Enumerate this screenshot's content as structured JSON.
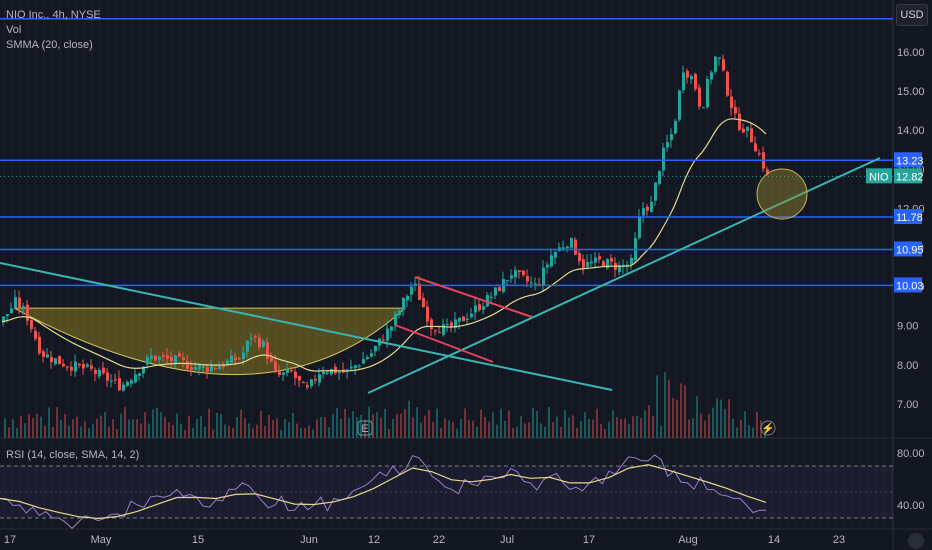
{
  "legend": {
    "symbol_line": "NIO Inc., 4h, NYSE",
    "vol_label": "Vol",
    "smma_label": "SMMA (20, close)"
  },
  "rsi_legend": "RSI (14, close, SMA, 14, 2)",
  "currency": "USD",
  "colors": {
    "background": "#131722",
    "up": "#26a69a",
    "down": "#ef5350",
    "smma": "#e5d98a",
    "hline": "#2962ff",
    "trendline": "#37b5b0",
    "channel": "#e0455a",
    "cup_fill": "#8a7a20",
    "rsi": "#9c7cc9",
    "rsi_ma": "#e5d98a"
  },
  "chart_data": [
    {
      "type": "candlestick",
      "title": "NIO Inc., 4h, NYSE",
      "y_axis_ticks": [
        "16.00",
        "15.00",
        "14.00",
        "13.00",
        "12.00",
        "11.00",
        "10.00",
        "9.00",
        "8.00",
        "7.00"
      ],
      "ylim": [
        6.2,
        16.9
      ],
      "x_axis_ticks": [
        "17",
        "May",
        "15",
        "Jun",
        "12",
        "22",
        "Jul",
        "17",
        "Aug",
        "14",
        "23"
      ],
      "price_levels": [
        {
          "label": "13.23",
          "value": 13.23
        },
        {
          "label": "11.78",
          "value": 11.78
        },
        {
          "label": "10.95",
          "value": 10.95
        },
        {
          "label": "10.03",
          "value": 10.03
        }
      ],
      "top_line_value": 16.85,
      "last_price": {
        "symbol": "NIO",
        "value": "12.82"
      },
      "indicators": [
        "Vol",
        "SMMA (20, close)"
      ],
      "close_path": [
        [
          0,
          9.1
        ],
        [
          14,
          9.6
        ],
        [
          24,
          9.35
        ],
        [
          40,
          8.3
        ],
        [
          60,
          8.05
        ],
        [
          90,
          7.85
        ],
        [
          120,
          7.45
        ],
        [
          150,
          8.2
        ],
        [
          175,
          8.1
        ],
        [
          200,
          7.9
        ],
        [
          220,
          8.0
        ],
        [
          240,
          8.2
        ],
        [
          250,
          8.75
        ],
        [
          262,
          8.5
        ],
        [
          275,
          7.7
        ],
        [
          290,
          7.8
        ],
        [
          305,
          7.3
        ],
        [
          320,
          7.9
        ],
        [
          345,
          7.8
        ],
        [
          370,
          8.3
        ],
        [
          390,
          9.0
        ],
        [
          412,
          10.1
        ],
        [
          430,
          9.0
        ],
        [
          448,
          8.9
        ],
        [
          470,
          9.35
        ],
        [
          492,
          9.8
        ],
        [
          510,
          10.35
        ],
        [
          535,
          10.0
        ],
        [
          550,
          10.8
        ],
        [
          568,
          11.2
        ],
        [
          582,
          10.55
        ],
        [
          600,
          10.65
        ],
        [
          618,
          10.5
        ],
        [
          630,
          10.6
        ],
        [
          640,
          12.0
        ],
        [
          650,
          12.1
        ],
        [
          660,
          13.3
        ],
        [
          672,
          14.0
        ],
        [
          682,
          15.6
        ],
        [
          692,
          15.3
        ],
        [
          700,
          14.5
        ],
        [
          708,
          15.4
        ],
        [
          716,
          16.0
        ],
        [
          725,
          15.1
        ],
        [
          735,
          14.2
        ],
        [
          745,
          14.0
        ],
        [
          752,
          13.7
        ],
        [
          760,
          13.25
        ],
        [
          766,
          12.82
        ]
      ]
    },
    {
      "type": "line",
      "title": "RSI (14, close, SMA, 14, 2)",
      "y_axis_ticks": [
        "80.00",
        "40.00"
      ],
      "ylim": [
        20,
        90
      ],
      "bands": [
        70,
        30
      ],
      "values": [
        45,
        40,
        32,
        30,
        27,
        28,
        33,
        40,
        47,
        52,
        46,
        44,
        52,
        49,
        40,
        36,
        40,
        45,
        51,
        60,
        70,
        78,
        62,
        52,
        56,
        62,
        68,
        57,
        62,
        52,
        57,
        66,
        77,
        74,
        62,
        57,
        52,
        47,
        40,
        36
      ]
    }
  ]
}
